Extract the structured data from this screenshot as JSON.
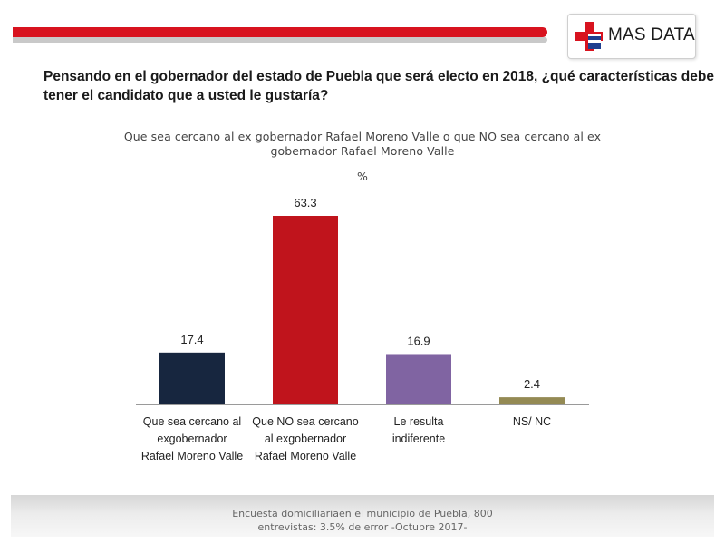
{
  "brand": {
    "name": "MAS DATA"
  },
  "question": "Pensando en el gobernador del estado de Puebla que será electo en 2018, ¿qué características debe tener el candidato que a usted le gustaría?",
  "footer": {
    "line1": "Encuesta domiciliariaen el municipio de Puebla, 800",
    "line2": "entrevistas: 3.5% de error -Octubre 2017-"
  },
  "chart_data": {
    "type": "bar",
    "title": "Que sea cercano al ex gobernador Rafael Moreno Valle o que NO sea cercano al ex gobernador Rafael Moreno Valle",
    "unit": "%",
    "categories": [
      [
        "Que sea cercano al",
        "exgobernador",
        "Rafael Moreno Valle"
      ],
      [
        "Que NO sea cercano",
        "al exgobernador",
        "Rafael Moreno Valle"
      ],
      [
        "Le resulta",
        "indiferente"
      ],
      [
        "NS/ NC"
      ]
    ],
    "values": [
      17.4,
      63.3,
      16.9,
      2.4
    ],
    "colors": [
      "#17263f",
      "#c0141c",
      "#8064a2",
      "#948a54"
    ],
    "ylim": [
      0,
      63.3
    ],
    "grid": false,
    "legend": "none"
  }
}
